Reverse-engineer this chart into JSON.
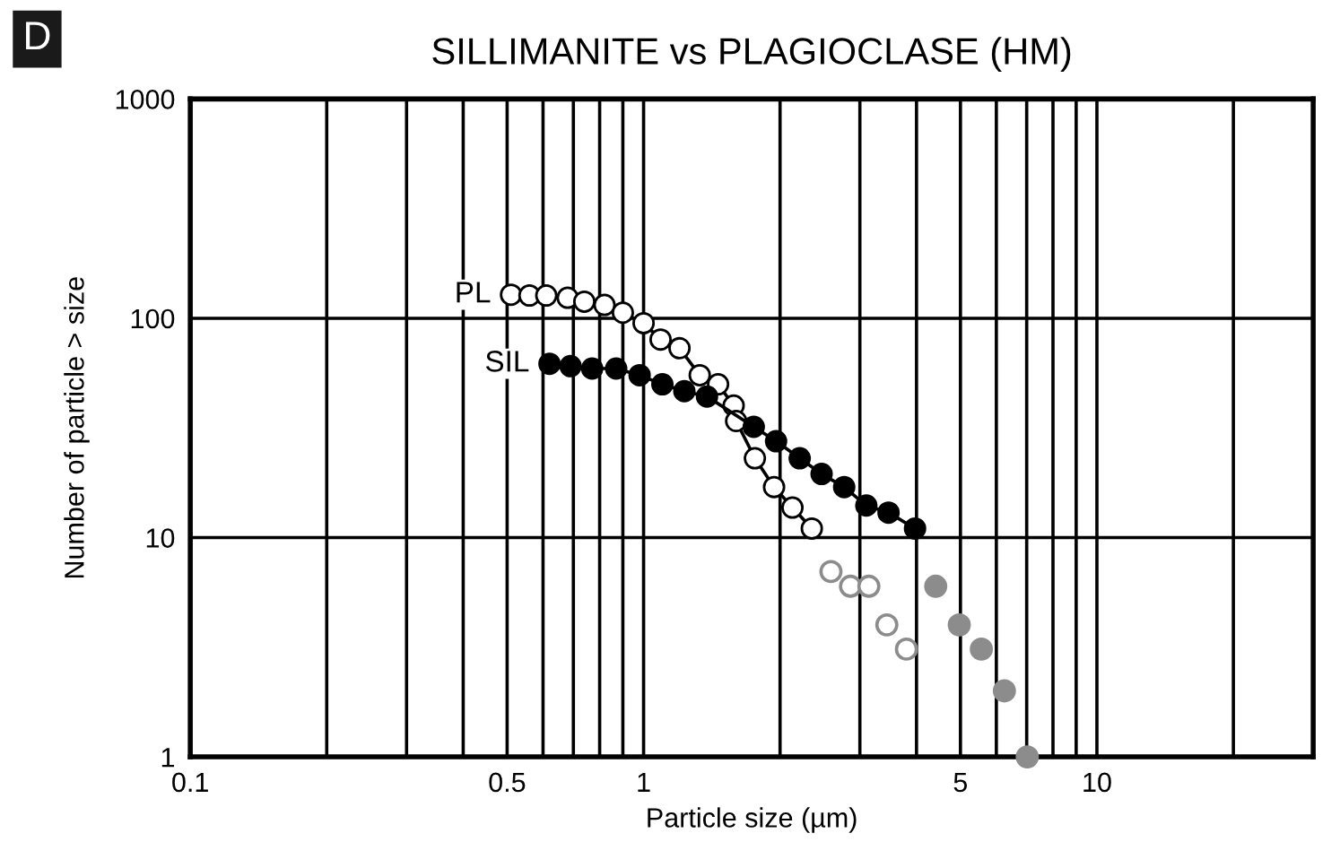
{
  "chart_data": {
    "type": "line",
    "title": "SILLIMANITE vs PLAGIOCLASE (HM)",
    "xlabel": "Particle size (µm)",
    "ylabel": "Number of particle > size",
    "annotations": [
      "D"
    ],
    "log": "xy",
    "xlim": [
      0.1,
      30
    ],
    "ylim": [
      1,
      1000
    ],
    "xticks": [
      0.1,
      {
        "value": 0.2,
        "label": null
      },
      {
        "value": 0.3,
        "label": null
      },
      {
        "value": 0.4,
        "label": null
      },
      0.5,
      {
        "value": 0.6,
        "label": null
      },
      {
        "value": 0.7,
        "label": null
      },
      {
        "value": 0.8,
        "label": null
      },
      {
        "value": 0.9,
        "label": null
      },
      1,
      {
        "value": 2,
        "label": null
      },
      {
        "value": 3,
        "label": null
      },
      {
        "value": 4,
        "label": null
      },
      5,
      {
        "value": 6,
        "label": null
      },
      {
        "value": 7,
        "label": null
      },
      {
        "value": 8,
        "label": null
      },
      {
        "value": 9,
        "label": null
      },
      10,
      {
        "value": 20,
        "label": null
      }
    ],
    "yticks": [
      1,
      10,
      100,
      1000
    ],
    "grid": true,
    "marker": "circle",
    "legend": false,
    "series": [
      {
        "name": "PL",
        "color": "#ffffff",
        "x": [
          0.51,
          0.56,
          0.61,
          0.68,
          0.74,
          0.82,
          0.9,
          1.0,
          1.09,
          1.2,
          1.33,
          1.46,
          1.58,
          1.6,
          1.76,
          1.94,
          2.13,
          2.35
        ],
        "values": [
          128,
          127,
          127,
          124,
          119,
          115,
          106,
          95,
          80,
          73,
          55,
          50,
          40,
          34,
          23,
          17,
          13.7,
          11
        ]
      },
      {
        "name": "SIL",
        "color": "#000000",
        "x": [
          0.62,
          0.69,
          0.77,
          0.87,
          0.98,
          1.1,
          1.23,
          1.38,
          1.75,
          1.96,
          2.21,
          2.47,
          2.77,
          3.1,
          3.47,
          3.97
        ],
        "values": [
          62,
          60.5,
          59,
          59,
          55,
          50,
          46.5,
          44,
          32,
          27.5,
          23,
          19.5,
          17,
          14,
          13,
          11
        ]
      },
      {
        "type": "scatter",
        "color": "#ffffff",
        "x": [
          2.59,
          2.86,
          3.14,
          3.44,
          3.8
        ],
        "values": [
          7,
          6,
          6,
          4,
          3.1
        ]
      },
      {
        "type": "scatter",
        "color": "#8c8c8c",
        "x": [
          4.41,
          4.97,
          5.56,
          6.25,
          7.02
        ],
        "values": [
          6,
          4,
          3.1,
          2,
          1
        ]
      }
    ]
  }
}
